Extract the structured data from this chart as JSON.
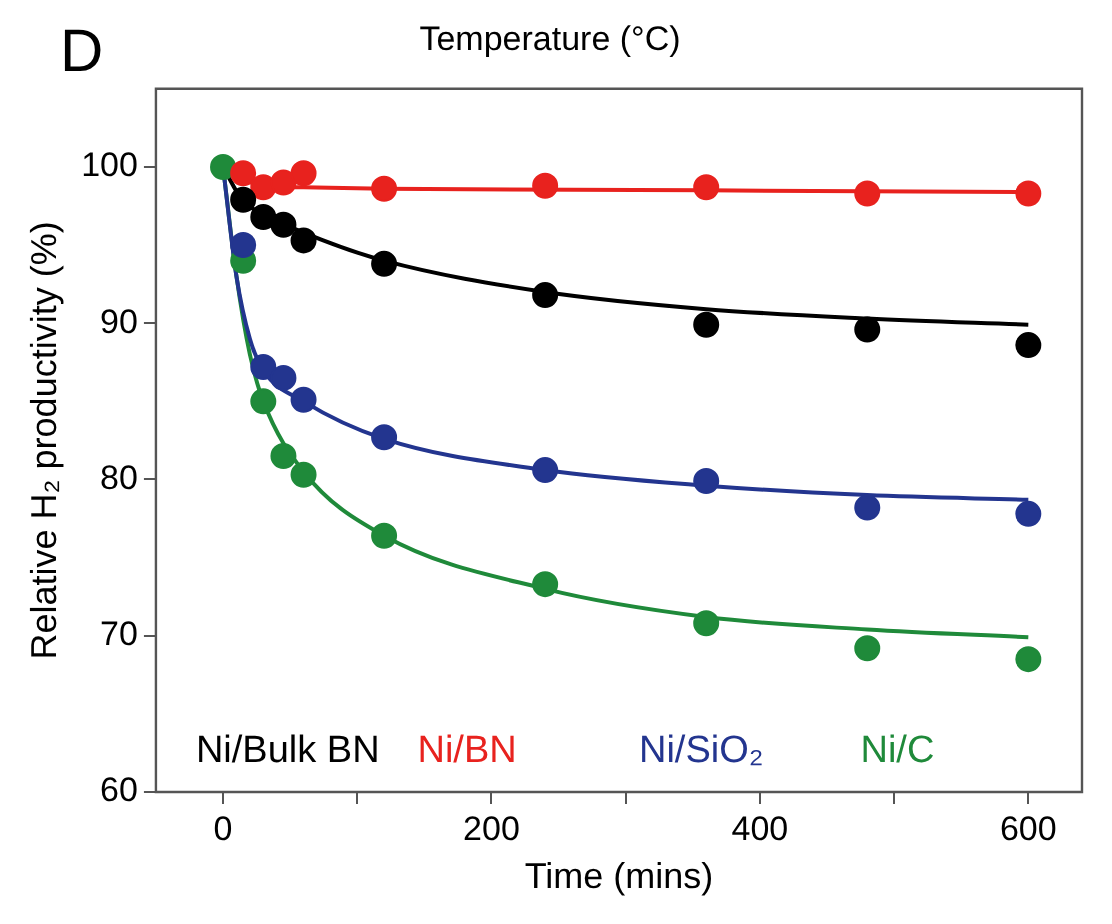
{
  "chart_data": {
    "type": "scatter",
    "title": "Temperature (°C)",
    "xlabel": "Time (mins)",
    "ylabel": "Relative H₂ productivity (%)",
    "annotations": [
      "D"
    ],
    "xlim": [
      -50,
      640
    ],
    "xticks": [
      0,
      {
        "value": 100,
        "label": null
      },
      200,
      {
        "value": 300,
        "label": null
      },
      400,
      {
        "value": 500,
        "label": null
      },
      600
    ],
    "ylim": [
      60,
      105
    ],
    "yticks": [
      60,
      70,
      80,
      90,
      100
    ],
    "x": [
      0,
      15,
      30,
      45,
      60,
      120,
      240,
      360,
      480,
      600
    ],
    "grid": false,
    "legend": "bottom",
    "marker": "circle",
    "series": [
      {
        "name": "Ni/Bulk BN",
        "color": "#000000",
        "values": [
          null,
          97.9,
          96.8,
          96.3,
          95.3,
          93.8,
          91.8,
          89.9,
          89.6,
          88.6
        ]
      },
      {
        "name": "Ni/BN",
        "color": "#e8221e",
        "values": [
          null,
          99.6,
          98.7,
          99,
          99.6,
          98.6,
          98.8,
          98.7,
          98.3,
          98.3
        ]
      },
      {
        "name": "Ni/SiO₂",
        "color": "#23358f",
        "values": [
          null,
          95,
          87.2,
          86.5,
          85.1,
          82.7,
          80.6,
          79.9,
          78.2,
          77.8
        ]
      },
      {
        "name": "Ni/C",
        "color": "#1f8a3a",
        "values": [
          100,
          94,
          85,
          81.5,
          80.3,
          76.4,
          73.3,
          70.8,
          69.2,
          68.5
        ]
      },
      {
        "type": "line",
        "marker": "none",
        "color": "#000000",
        "x": [
          0,
          15,
          30,
          60,
          120,
          240,
          360,
          480,
          600
        ],
        "values": [
          100,
          97.8,
          97,
          95.8,
          94,
          92,
          90.9,
          90.3,
          89.9
        ]
      },
      {
        "type": "line",
        "marker": "none",
        "color": "#e8221e",
        "x": [
          0,
          15,
          30,
          60,
          120,
          360,
          600
        ],
        "values": [
          100,
          99.2,
          98.8,
          98.7,
          98.6,
          98.5,
          98.4
        ]
      },
      {
        "type": "line",
        "marker": "none",
        "color": "#23358f",
        "x": [
          0,
          10,
          20,
          30,
          60,
          120,
          240,
          360,
          480,
          600
        ],
        "values": [
          100,
          93,
          89,
          87,
          85,
          82.6,
          80.6,
          79.6,
          79,
          78.7
        ]
      },
      {
        "type": "line",
        "marker": "none",
        "color": "#1f8a3a",
        "x": [
          0,
          10,
          20,
          30,
          60,
          120,
          240,
          360,
          480,
          600
        ],
        "values": [
          100,
          93,
          88,
          85,
          80.5,
          76.4,
          73,
          71.2,
          70.4,
          69.9
        ]
      }
    ]
  }
}
